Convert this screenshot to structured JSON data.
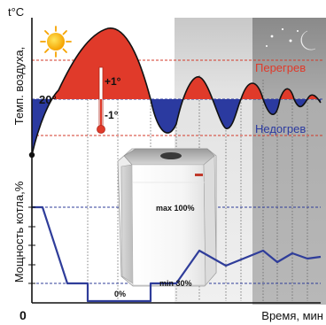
{
  "labels": {
    "temp_unit": "t°C",
    "y_axis_top": "Темп. воздуха,",
    "y_axis_bottom": "Мощность котла,%",
    "origin": "0",
    "x_axis": "Время, мин",
    "setpoint": "20°",
    "plus_one": "+1°",
    "minus_one": "-1°",
    "overheat": "Перегрев",
    "underheat": "Недогрев",
    "max_power": "max 100%",
    "min_power": "min 30%",
    "zero_power": "0%"
  },
  "icons": {
    "day": "sun-icon",
    "night": "moon-and-stars-icon",
    "device": "boiler-unit"
  },
  "colors": {
    "overheat": "#e03a2a",
    "underheat": "#2b3aa0",
    "power_line": "#2f3d9a",
    "limit_lines": "#d33a2a",
    "panel_mid": "#dcdcdc",
    "panel_night": "#a3a3a3"
  }
}
